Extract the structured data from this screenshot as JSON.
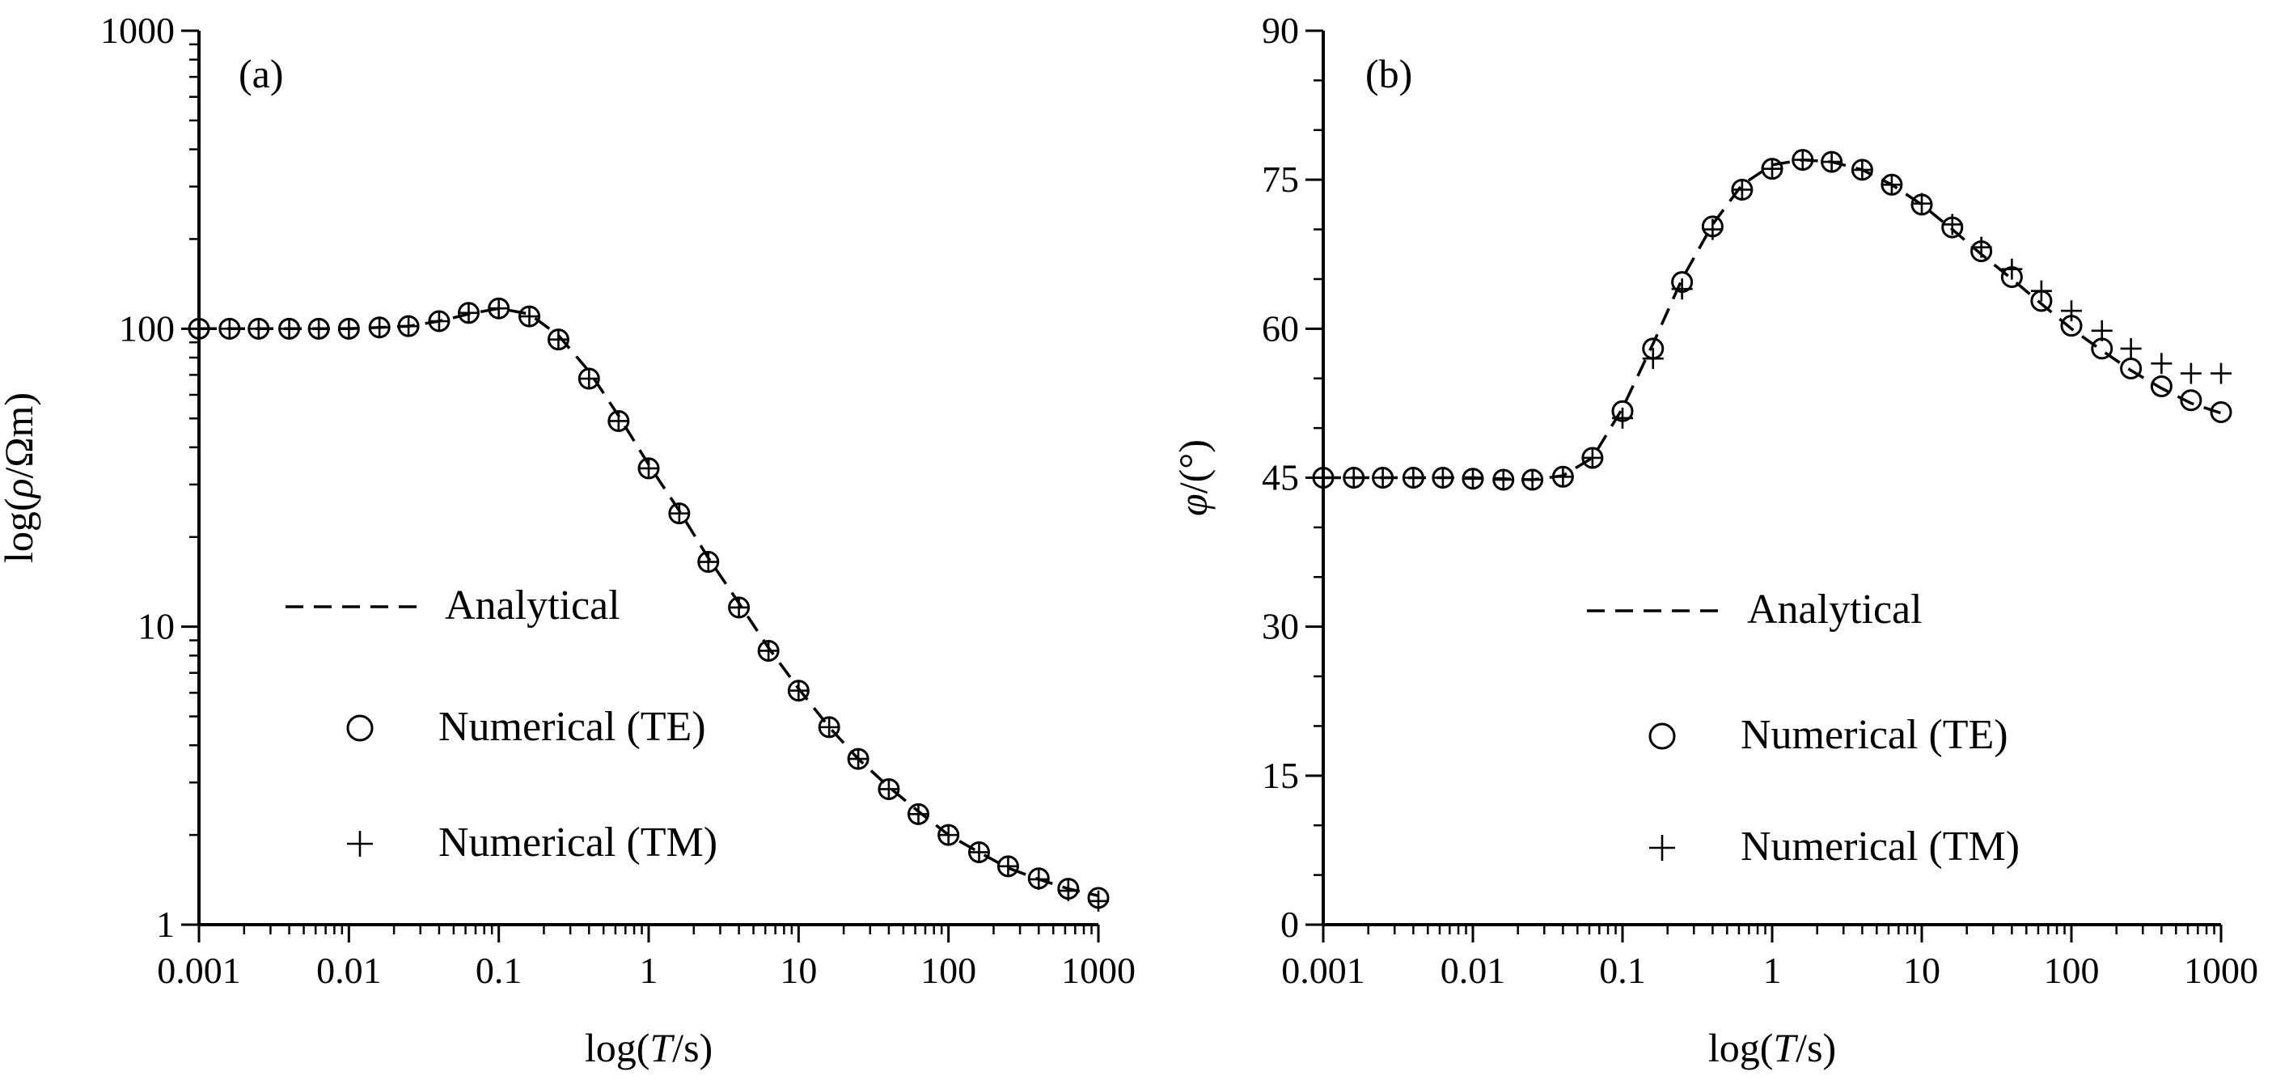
{
  "chart_data": [
    {
      "type": "scatter",
      "panel_label": "(a)",
      "xlabel_prefix": "log(",
      "xlabel_var": "T",
      "xlabel_suffix": "/s)",
      "ylabel_prefix": "log(",
      "ylabel_var": "ρ",
      "ylabel_suffix": "/Ωm)",
      "xscale": "log",
      "yscale": "log",
      "xlim": [
        0.001,
        1000
      ],
      "ylim": [
        1,
        1000
      ],
      "xticks": [
        "0.001",
        "0.01",
        "0.1",
        "1",
        "10",
        "100",
        "1000"
      ],
      "yticks": [
        "1",
        "10",
        "100",
        "1000"
      ],
      "legend_position": "lower-left",
      "series": [
        {
          "name": "Analytical",
          "marker": "dashed-line",
          "x": [
            0.001,
            0.0025,
            0.01,
            0.025,
            0.04,
            0.063,
            0.1,
            0.16,
            0.25,
            0.4,
            0.63,
            1,
            1.6,
            2.5,
            4,
            6.3,
            10,
            16,
            25,
            40,
            63,
            100,
            160,
            250,
            400,
            630,
            1000
          ],
          "values": [
            100,
            100,
            100,
            102,
            106,
            112,
            117,
            112,
            95,
            72,
            51,
            35,
            24.5,
            17,
            12,
            8.5,
            6.2,
            4.6,
            3.6,
            2.9,
            2.4,
            2.0,
            1.75,
            1.55,
            1.42,
            1.32,
            1.25
          ]
        },
        {
          "name": "Numerical (TE)",
          "marker": "circle",
          "x": [
            0.001,
            0.0016,
            0.0025,
            0.004,
            0.0063,
            0.01,
            0.016,
            0.025,
            0.04,
            0.063,
            0.1,
            0.16,
            0.25,
            0.4,
            0.63,
            1,
            1.6,
            2.5,
            4,
            6.3,
            10,
            16,
            25,
            40,
            63,
            100,
            160,
            250,
            400,
            630,
            1000
          ],
          "values": [
            100,
            100,
            100,
            100,
            100,
            100,
            101,
            102,
            106,
            113,
            117,
            110,
            92,
            68,
            49,
            34,
            24,
            16.5,
            11.6,
            8.3,
            6.1,
            4.6,
            3.6,
            2.85,
            2.35,
            2.0,
            1.75,
            1.57,
            1.43,
            1.32,
            1.23
          ]
        },
        {
          "name": "Numerical (TM)",
          "marker": "plus",
          "x": [
            0.001,
            0.0016,
            0.0025,
            0.004,
            0.0063,
            0.01,
            0.016,
            0.025,
            0.04,
            0.063,
            0.1,
            0.16,
            0.25,
            0.4,
            0.63,
            1,
            1.6,
            2.5,
            4,
            6.3,
            10,
            16,
            25,
            40,
            63,
            100,
            160,
            250,
            400,
            630,
            1000
          ],
          "values": [
            100,
            100,
            100,
            100,
            100,
            100,
            101,
            102,
            106,
            113,
            117,
            110,
            92,
            68,
            49,
            34,
            24,
            16.5,
            11.6,
            8.3,
            6.1,
            4.6,
            3.6,
            2.85,
            2.35,
            2.0,
            1.75,
            1.57,
            1.42,
            1.3,
            1.2
          ]
        }
      ]
    },
    {
      "type": "scatter",
      "panel_label": "(b)",
      "xlabel_prefix": "log(",
      "xlabel_var": "T",
      "xlabel_suffix": "/s)",
      "ylabel_prefix": "",
      "ylabel_var": "φ",
      "ylabel_suffix": "/(°)",
      "xscale": "log",
      "yscale": "linear",
      "xlim": [
        0.001,
        1000
      ],
      "ylim": [
        0,
        90
      ],
      "xticks": [
        "0.001",
        "0.01",
        "0.1",
        "1",
        "10",
        "100",
        "1000"
      ],
      "yticks": [
        "0",
        "15",
        "30",
        "45",
        "60",
        "75",
        "90"
      ],
      "legend_position": "lower-center",
      "series": [
        {
          "name": "Analytical",
          "marker": "dashed-line",
          "x": [
            0.001,
            0.01,
            0.025,
            0.04,
            0.063,
            0.1,
            0.16,
            0.25,
            0.4,
            0.63,
            1,
            1.6,
            2.5,
            4,
            6.3,
            10,
            16,
            25,
            40,
            63,
            100,
            160,
            250,
            400,
            630,
            1000
          ],
          "values": [
            45,
            45,
            44.8,
            45.2,
            47,
            52,
            58.5,
            65,
            70.5,
            74.5,
            76.5,
            77,
            76.8,
            76,
            74.5,
            72.5,
            70,
            67.5,
            65,
            62.5,
            60,
            57.8,
            55.8,
            54,
            52.5,
            51.5
          ]
        },
        {
          "name": "Numerical (TE)",
          "marker": "circle",
          "x": [
            0.001,
            0.0016,
            0.0025,
            0.004,
            0.0063,
            0.01,
            0.016,
            0.025,
            0.04,
            0.063,
            0.1,
            0.16,
            0.25,
            0.4,
            0.63,
            1,
            1.6,
            2.5,
            4,
            6.3,
            10,
            16,
            25,
            40,
            63,
            100,
            160,
            250,
            400,
            630,
            1000
          ],
          "values": [
            45,
            45,
            45,
            45,
            45,
            44.9,
            44.8,
            44.8,
            45.1,
            47,
            51.7,
            58,
            64.7,
            70.3,
            74,
            76.1,
            77,
            76.8,
            76,
            74.5,
            72.5,
            70.2,
            67.8,
            65.2,
            62.8,
            60.3,
            58,
            56,
            54.2,
            52.8,
            51.6
          ]
        },
        {
          "name": "Numerical (TM)",
          "marker": "plus",
          "x": [
            0.001,
            0.0016,
            0.0025,
            0.004,
            0.0063,
            0.01,
            0.016,
            0.025,
            0.04,
            0.063,
            0.1,
            0.16,
            0.25,
            0.4,
            0.63,
            1,
            1.6,
            2.5,
            4,
            6.3,
            10,
            16,
            25,
            40,
            63,
            100,
            160,
            250,
            400,
            630,
            1000
          ],
          "values": [
            45,
            45,
            45,
            45,
            45,
            44.9,
            44.8,
            44.8,
            45.1,
            47,
            51,
            57,
            64,
            70,
            74,
            76.1,
            77,
            76.8,
            76,
            74.5,
            72.6,
            70.5,
            68.2,
            66,
            63.8,
            61.8,
            59.8,
            58,
            56.5,
            55.5,
            55.5
          ]
        }
      ]
    }
  ]
}
